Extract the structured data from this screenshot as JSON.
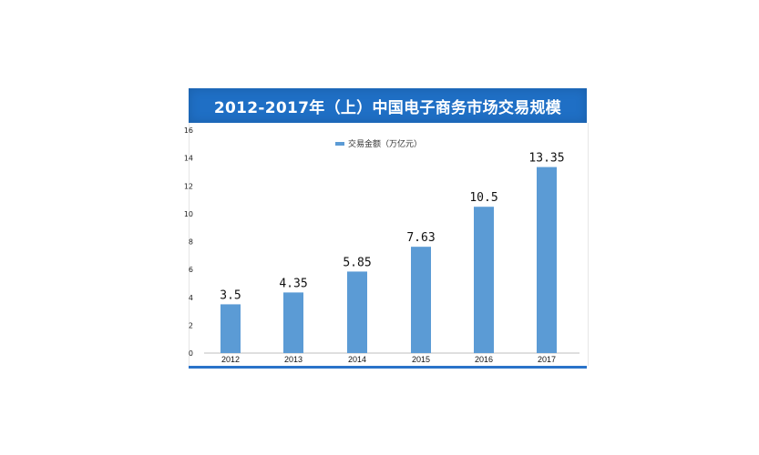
{
  "chart_data": {
    "type": "bar",
    "title": "2012-2017年（上）中国电子商务市场交易规模",
    "categories": [
      "2012",
      "2013",
      "2014",
      "2015",
      "2016",
      "2017"
    ],
    "series": [
      {
        "name": "交易金额（万亿元）",
        "values": [
          3.5,
          4.35,
          5.85,
          7.63,
          10.5,
          13.35
        ],
        "labels": [
          "3.5",
          "4.35",
          "5.85",
          "7.63",
          "10.5",
          "13.35"
        ]
      }
    ],
    "y_ticks": [
      "0",
      "2",
      "4",
      "6",
      "8",
      "10",
      "12",
      "14",
      "16"
    ],
    "ylim": [
      0,
      16
    ],
    "xlabel": "",
    "ylabel": "",
    "legend_position": "top-center",
    "grid": false,
    "bar_color": "#5b9bd5",
    "title_bg_color": "#1f6fc5"
  }
}
